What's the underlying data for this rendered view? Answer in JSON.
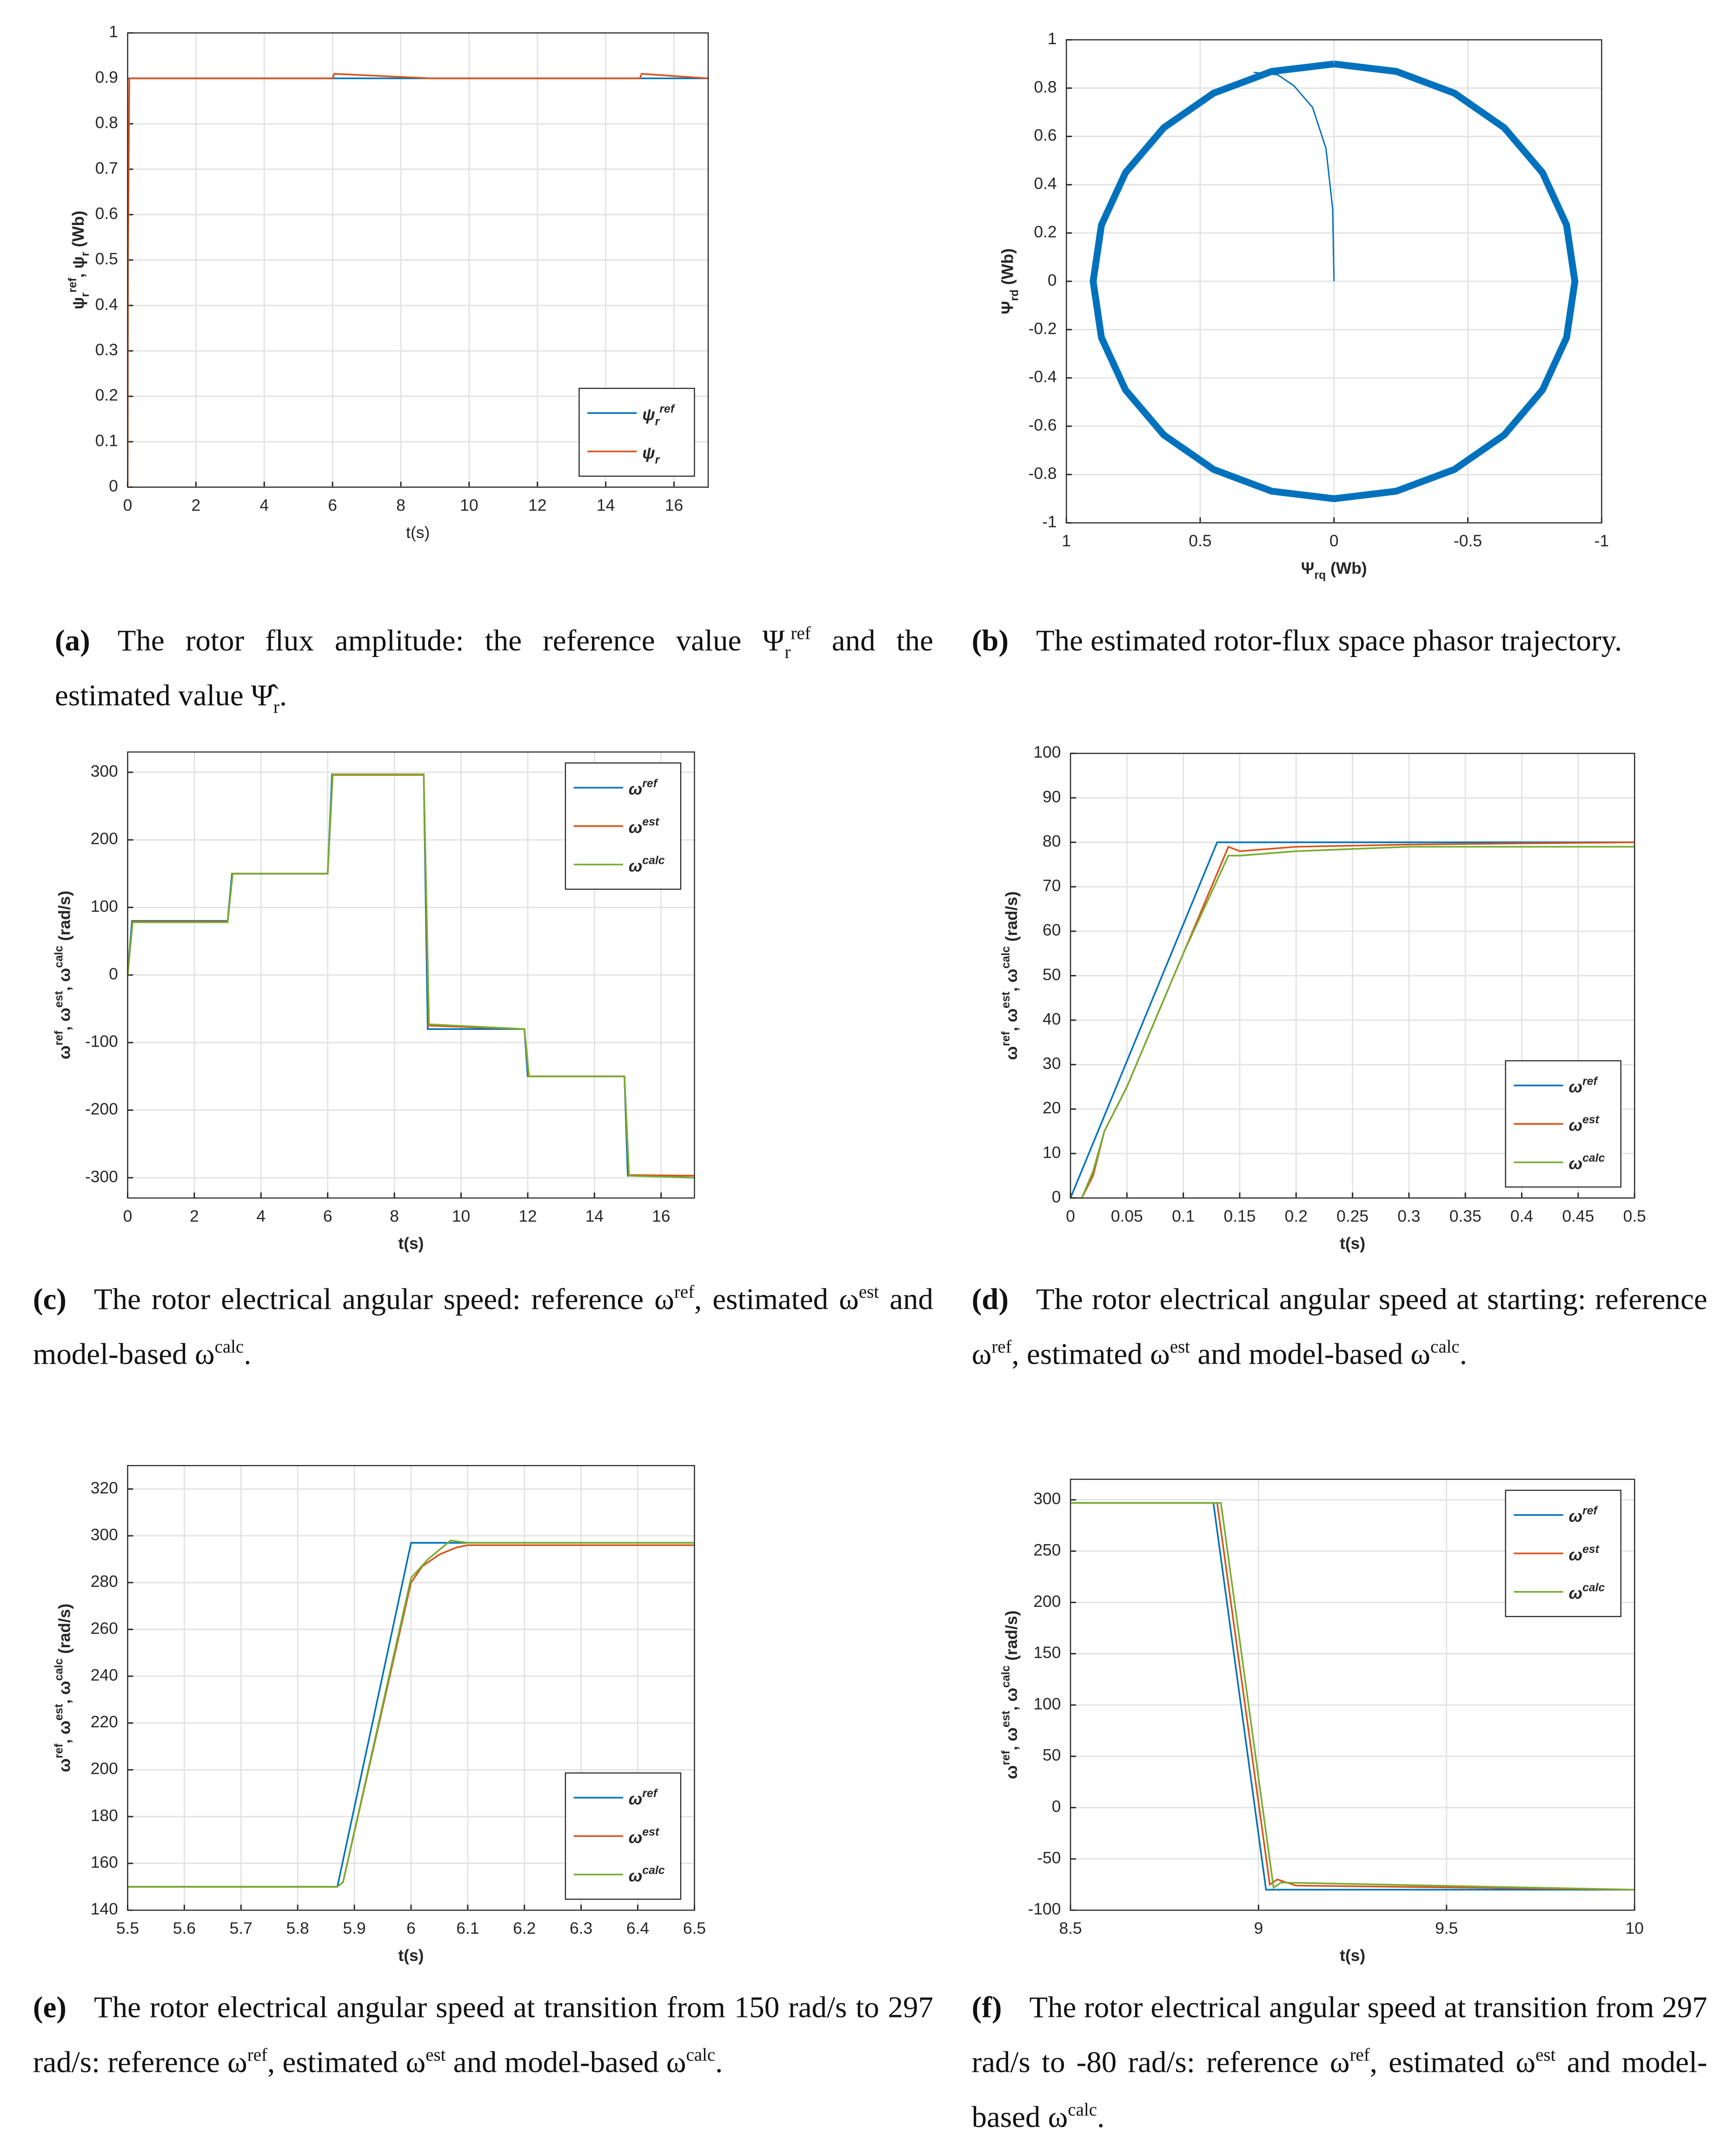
{
  "chart_data": [
    {
      "type": "line",
      "xlabel": [
        "t(s)"
      ],
      "ylabel": [
        "ψ",
        {
          "text": "r",
          "pos": "sub"
        },
        {
          "text": "ref",
          "pos": "sup"
        },
        ", ψ",
        {
          "text": "r",
          "pos": "sub"
        },
        " (Wb)"
      ],
      "xlim": [
        0,
        17
      ],
      "ylim": [
        0,
        1
      ],
      "xticks": [
        0,
        2,
        4,
        6,
        8,
        10,
        12,
        14,
        16
      ],
      "yticks": [
        0,
        0.1,
        0.2,
        0.3,
        0.4,
        0.5,
        0.6,
        0.7,
        0.8,
        0.9,
        1
      ],
      "grid": true,
      "legend": "lower right",
      "series": [
        {
          "name": [
            "ψ",
            {
              "text": "r",
              "pos": "sub"
            },
            {
              "text": "ref",
              "pos": "sup"
            }
          ],
          "color": "#0072BD",
          "x": [
            0,
            0.01,
            17
          ],
          "values": [
            0.9,
            0.9,
            0.9
          ]
        },
        {
          "name": [
            "ψ",
            {
              "text": "r",
              "pos": "sub"
            }
          ],
          "color": "#D95319",
          "x": [
            0,
            0.01,
            0.05,
            6,
            6.05,
            8.9,
            15,
            15.05,
            17
          ],
          "values": [
            0,
            0.5,
            0.9,
            0.9,
            0.91,
            0.9,
            0.9,
            0.91,
            0.9
          ]
        }
      ],
      "caption_label": "(a)",
      "caption": [
        "The rotor flux amplitude: the reference value Ψ",
        {
          "text": "r",
          "pos": "sub"
        },
        {
          "text": "ref",
          "pos": "sup"
        },
        " and the estimated value Ψ̂",
        {
          "text": "r",
          "pos": "sub"
        },
        "."
      ]
    },
    {
      "type": "line",
      "xlabel": [
        "Ψ",
        {
          "text": "rq",
          "pos": "sub"
        },
        " (Wb)"
      ],
      "ylabel": [
        "Ψ",
        {
          "text": "rd",
          "pos": "sub"
        },
        " (Wb)"
      ],
      "xlim": [
        1,
        -1
      ],
      "ylim": [
        -1,
        1
      ],
      "xticks": [
        1,
        0.5,
        0,
        -0.5,
        -1
      ],
      "yticks": [
        -1,
        -0.8,
        -0.6,
        -0.4,
        -0.2,
        0,
        0.2,
        0.4,
        0.6,
        0.8,
        1
      ],
      "grid": true,
      "series": [
        {
          "color": "#0072BD",
          "width": 5,
          "x": [
            0,
            0.233,
            0.45,
            0.636,
            0.779,
            0.869,
            0.9,
            0.869,
            0.779,
            0.636,
            0.45,
            0.233,
            0,
            -0.233,
            -0.45,
            -0.636,
            -0.779,
            -0.869,
            -0.9,
            -0.869,
            -0.779,
            -0.636,
            -0.45,
            -0.233,
            0
          ],
          "values": [
            0.9,
            0.869,
            0.779,
            0.636,
            0.45,
            0.233,
            0,
            -0.233,
            -0.45,
            -0.636,
            -0.779,
            -0.869,
            -0.9,
            -0.869,
            -0.779,
            -0.636,
            -0.45,
            -0.233,
            0,
            0.233,
            0.45,
            0.636,
            0.779,
            0.869,
            0.9
          ]
        },
        {
          "color": "#0072BD",
          "width": 1,
          "x": [
            0,
            0.005,
            0.03,
            0.08,
            0.15,
            0.21,
            0.25,
            0.3
          ],
          "values": [
            0,
            0.3,
            0.55,
            0.72,
            0.81,
            0.855,
            0.86,
            0.865
          ]
        }
      ],
      "caption_label": "(b)",
      "caption": [
        "The estimated rotor-flux space phasor trajectory."
      ]
    },
    {
      "type": "line",
      "xlabel": [
        "t(s)"
      ],
      "ylabel": [
        "ω",
        {
          "text": "ref",
          "pos": "sup"
        },
        ", ω",
        {
          "text": "est",
          "pos": "sup"
        },
        ", ω",
        {
          "text": "calc",
          "pos": "sup"
        },
        " (rad/s)"
      ],
      "xlim": [
        0,
        17
      ],
      "ylim": [
        -330,
        330
      ],
      "xticks": [
        0,
        2,
        4,
        6,
        8,
        10,
        12,
        14,
        16
      ],
      "yticks": [
        -300,
        -200,
        -100,
        0,
        100,
        200,
        300
      ],
      "grid": true,
      "legend": "upper right",
      "series": [
        {
          "name": [
            "ω",
            {
              "text": "ref",
              "pos": "sup"
            }
          ],
          "color": "#0072BD",
          "x": [
            0,
            0.13,
            3,
            3.13,
            6,
            6.13,
            8.88,
            9,
            11.9,
            12,
            14.9,
            15,
            17
          ],
          "values": [
            0,
            80,
            80,
            150,
            150,
            297,
            297,
            -80,
            -80,
            -150,
            -150,
            -297,
            -297
          ]
        },
        {
          "name": [
            "ω",
            {
              "text": "est",
              "pos": "sup"
            }
          ],
          "color": "#D95319",
          "x": [
            0,
            0.15,
            3,
            3.15,
            6,
            6.15,
            8.88,
            9.03,
            11.9,
            12.03,
            14.9,
            15.03,
            17
          ],
          "values": [
            0,
            79,
            79,
            150,
            150,
            296,
            296,
            -75,
            -80,
            -150,
            -150,
            -296,
            -297
          ]
        },
        {
          "name": [
            "ω",
            {
              "text": "calc",
              "pos": "sup"
            }
          ],
          "color": "#77AC30",
          "x": [
            0,
            0.15,
            3,
            3.15,
            6,
            6.15,
            8.88,
            9.04,
            11.9,
            12.04,
            14.9,
            15.04,
            17
          ],
          "values": [
            0,
            78,
            78,
            150,
            150,
            297,
            297,
            -73,
            -80,
            -150,
            -150,
            -297,
            -300
          ]
        }
      ],
      "caption_label": "(c)",
      "caption": [
        "The rotor electrical angular speed: reference ω",
        {
          "text": "ref",
          "pos": "sup"
        },
        ", estimated ω",
        {
          "text": "est",
          "pos": "sup"
        },
        " and model-based ω",
        {
          "text": "calc",
          "pos": "sup"
        },
        "."
      ]
    },
    {
      "type": "line",
      "xlabel": [
        "t(s)"
      ],
      "ylabel": [
        "ω",
        {
          "text": "ref",
          "pos": "sup"
        },
        ", ω",
        {
          "text": "est",
          "pos": "sup"
        },
        ", ω",
        {
          "text": "calc",
          "pos": "sup"
        },
        " (rad/s)"
      ],
      "xlim": [
        0,
        0.5
      ],
      "ylim": [
        0,
        100
      ],
      "xticks": [
        0,
        0.05,
        0.1,
        0.15,
        0.2,
        0.25,
        0.3,
        0.35,
        0.4,
        0.45,
        0.5
      ],
      "yticks": [
        0,
        10,
        20,
        30,
        40,
        50,
        60,
        70,
        80,
        90,
        100
      ],
      "grid": true,
      "legend": "lower right",
      "series": [
        {
          "name": [
            "ω",
            {
              "text": "ref",
              "pos": "sup"
            }
          ],
          "color": "#0072BD",
          "x": [
            0,
            0.13,
            0.5
          ],
          "values": [
            0,
            80,
            80
          ]
        },
        {
          "name": [
            "ω",
            {
              "text": "est",
              "pos": "sup"
            }
          ],
          "color": "#D95319",
          "x": [
            0,
            0.01,
            0.02,
            0.03,
            0.05,
            0.1,
            0.14,
            0.15,
            0.2,
            0.3,
            0.5
          ],
          "values": [
            0,
            0,
            5,
            15,
            25,
            55,
            79,
            78,
            79,
            79.5,
            80
          ]
        },
        {
          "name": [
            "ω",
            {
              "text": "calc",
              "pos": "sup"
            }
          ],
          "color": "#77AC30",
          "x": [
            0,
            0.01,
            0.02,
            0.03,
            0.05,
            0.1,
            0.14,
            0.15,
            0.2,
            0.3,
            0.5
          ],
          "values": [
            0,
            0,
            6,
            15,
            25,
            55,
            77,
            77,
            78,
            79,
            79
          ]
        }
      ],
      "caption_label": "(d)",
      "caption": [
        "The rotor electrical angular speed at starting: reference ω",
        {
          "text": "ref",
          "pos": "sup"
        },
        ", estimated ω",
        {
          "text": "est",
          "pos": "sup"
        },
        " and model-based ω",
        {
          "text": "calc",
          "pos": "sup"
        },
        "."
      ]
    },
    {
      "type": "line",
      "xlabel": [
        "t(s)"
      ],
      "ylabel": [
        "ω",
        {
          "text": "ref",
          "pos": "sup"
        },
        ", ω",
        {
          "text": "est",
          "pos": "sup"
        },
        ", ω",
        {
          "text": "calc",
          "pos": "sup"
        },
        " (rad/s)"
      ],
      "xlim": [
        5.5,
        6.5
      ],
      "ylim": [
        140,
        330
      ],
      "xticks": [
        5.5,
        5.6,
        5.7,
        5.8,
        5.9,
        6,
        6.1,
        6.2,
        6.3,
        6.4,
        6.5
      ],
      "yticks": [
        140,
        160,
        180,
        200,
        220,
        240,
        260,
        280,
        300,
        320
      ],
      "grid": true,
      "legend": "lower right",
      "series": [
        {
          "name": [
            "ω",
            {
              "text": "ref",
              "pos": "sup"
            }
          ],
          "color": "#0072BD",
          "x": [
            5.5,
            5.87,
            6,
            6.5
          ],
          "values": [
            150,
            150,
            297,
            297
          ]
        },
        {
          "name": [
            "ω",
            {
              "text": "est",
              "pos": "sup"
            }
          ],
          "color": "#D95319",
          "x": [
            5.5,
            5.87,
            5.88,
            6,
            6.02,
            6.05,
            6.08,
            6.1,
            6.5
          ],
          "values": [
            150,
            150,
            152,
            280,
            287,
            292,
            295,
            296,
            296
          ]
        },
        {
          "name": [
            "ω",
            {
              "text": "calc",
              "pos": "sup"
            }
          ],
          "color": "#77AC30",
          "x": [
            5.5,
            5.87,
            5.88,
            6,
            6.03,
            6.07,
            6.1,
            6.5
          ],
          "values": [
            150,
            150,
            152,
            282,
            290,
            298,
            297,
            297
          ]
        }
      ],
      "caption_label": "(e)",
      "caption": [
        "The rotor electrical angular speed at transition from 150 rad/s to 297 rad/s: reference ω",
        {
          "text": "ref",
          "pos": "sup"
        },
        ", estimated ω",
        {
          "text": "est",
          "pos": "sup"
        },
        " and model-based ω",
        {
          "text": "calc",
          "pos": "sup"
        },
        "."
      ]
    },
    {
      "type": "line",
      "xlabel": [
        "t(s)"
      ],
      "ylabel": [
        "ω",
        {
          "text": "ref",
          "pos": "sup"
        },
        ", ω",
        {
          "text": "est",
          "pos": "sup"
        },
        ", ω",
        {
          "text": "calc",
          "pos": "sup"
        },
        " (rad/s)"
      ],
      "xlim": [
        8.5,
        10
      ],
      "ylim": [
        -100,
        320
      ],
      "xticks": [
        8.5,
        9,
        9.5,
        10
      ],
      "yticks": [
        -100,
        -50,
        0,
        50,
        100,
        150,
        200,
        250,
        300
      ],
      "grid": true,
      "legend": "upper right",
      "series": [
        {
          "name": [
            "ω",
            {
              "text": "ref",
              "pos": "sup"
            }
          ],
          "color": "#0072BD",
          "x": [
            8.5,
            8.88,
            9.02,
            10
          ],
          "values": [
            297,
            297,
            -80,
            -80
          ]
        },
        {
          "name": [
            "ω",
            {
              "text": "est",
              "pos": "sup"
            }
          ],
          "color": "#D95319",
          "x": [
            8.5,
            8.89,
            9.03,
            9.05,
            9.1,
            10
          ],
          "values": [
            297,
            297,
            -75,
            -70,
            -76,
            -80
          ]
        },
        {
          "name": [
            "ω",
            {
              "text": "calc",
              "pos": "sup"
            }
          ],
          "color": "#77AC30",
          "x": [
            8.5,
            8.9,
            9.04,
            9.06,
            10
          ],
          "values": [
            297,
            297,
            -78,
            -73,
            -80
          ]
        }
      ],
      "caption_label": "(f)",
      "caption": [
        "The rotor electrical angular speed at transition from 297 rad/s to -80 rad/s: reference ω",
        {
          "text": "ref",
          "pos": "sup"
        },
        ", estimated ω",
        {
          "text": "est",
          "pos": "sup"
        },
        " and model-based ω",
        {
          "text": "calc",
          "pos": "sup"
        },
        "."
      ]
    }
  ]
}
